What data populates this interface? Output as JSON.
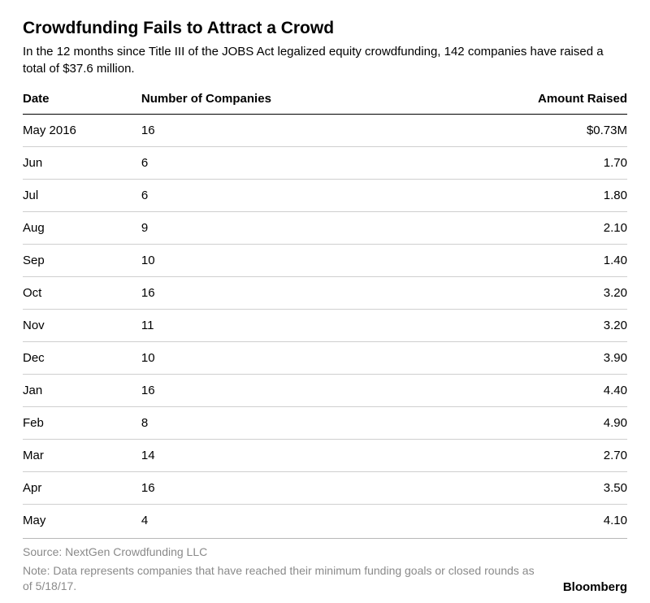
{
  "title": "Crowdfunding Fails to Attract a Crowd",
  "subtitle": "In the 12 months since Title III of the JOBS Act legalized equity crowdfunding, 142 companies have raised a total of $37.6 million.",
  "table": {
    "type": "table",
    "columns": [
      "Date",
      "Number of Companies",
      "Amount Raised"
    ],
    "column_align": [
      "left",
      "left",
      "right"
    ],
    "rows": [
      [
        "May 2016",
        "16",
        "$0.73M"
      ],
      [
        "Jun",
        "6",
        "1.70"
      ],
      [
        "Jul",
        "6",
        "1.80"
      ],
      [
        "Aug",
        "9",
        "2.10"
      ],
      [
        "Sep",
        "10",
        "1.40"
      ],
      [
        "Oct",
        "16",
        "3.20"
      ],
      [
        "Nov",
        "11",
        "3.20"
      ],
      [
        "Dec",
        "10",
        "3.90"
      ],
      [
        "Jan",
        "16",
        "4.40"
      ],
      [
        "Feb",
        "8",
        "4.90"
      ],
      [
        "Mar",
        "14",
        "2.70"
      ],
      [
        "Apr",
        "16",
        "3.50"
      ],
      [
        "May",
        "4",
        "4.10"
      ]
    ],
    "header_border_color": "#000000",
    "row_border_color": "#cfcfcf",
    "text_color": "#000000",
    "background_color": "#ffffff",
    "fontsize_header": 15,
    "fontsize_body": 15
  },
  "source": "Source: NextGen Crowdfunding LLC",
  "note": "Note: Data represents companies that have reached their minimum funding goals or closed rounds as of 5/18/17.",
  "brand": "Bloomberg",
  "colors": {
    "title": "#000000",
    "subtitle": "#000000",
    "footer_text": "#8a8a8a",
    "footer_rule": "#b8b8b8",
    "background": "#ffffff"
  }
}
